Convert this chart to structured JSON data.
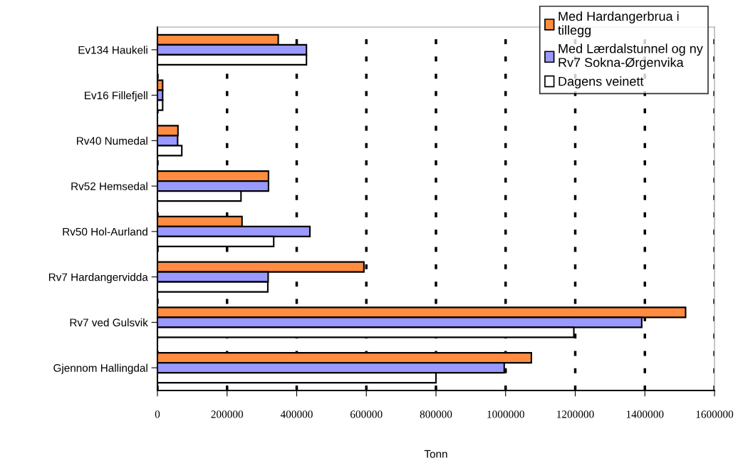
{
  "chart_data": {
    "type": "bar",
    "orientation": "horizontal",
    "xlabel": "Tonn",
    "categories": [
      "Ev134 Haukeli",
      "Ev16 Fillefjell",
      "Rv40 Numedal",
      "Rv52 Hemsedal",
      "Rv50 Hol-Aurland",
      "Rv7 Hardangervidda",
      "Rv7 ved Gulsvik",
      "Gjennom Hallingdal"
    ],
    "series": [
      {
        "name": "Med Hardangerbrua i\ntillegg",
        "color": "#ff8c40",
        "values": [
          347000,
          15000,
          59000,
          319000,
          243000,
          593000,
          1517000,
          1074000
        ]
      },
      {
        "name": "Med Lærdalstunnel og ny\nRv7 Sokna-Ørgenvika",
        "color": "#9999ff",
        "values": [
          428000,
          15000,
          58000,
          319000,
          438000,
          318000,
          1391000,
          996000
        ]
      },
      {
        "name": "Dagens veinett",
        "color": "#ffffff",
        "values": [
          428000,
          15000,
          70000,
          240000,
          334000,
          317000,
          1196000,
          800000
        ]
      }
    ],
    "xlim": [
      0,
      1600000
    ],
    "xticks": [
      0,
      200000,
      400000,
      600000,
      800000,
      1000000,
      1200000,
      1400000,
      1600000
    ],
    "grid": "x",
    "legend": "top right"
  }
}
